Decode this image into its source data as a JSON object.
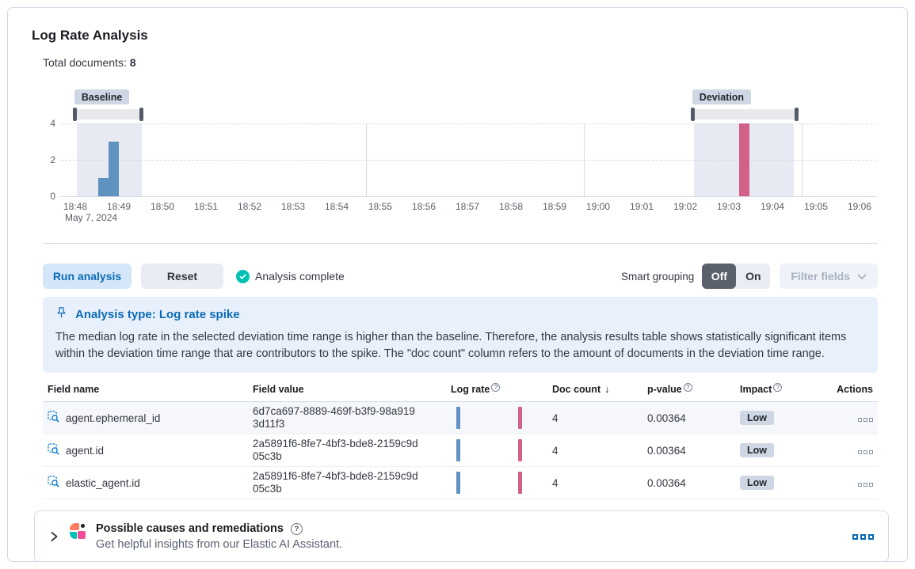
{
  "header": {
    "title": "Log Rate Analysis",
    "total_documents_label": "Total documents:",
    "total_documents_value": "8"
  },
  "chart_data": {
    "type": "bar",
    "title": "Document count histogram with baseline and deviation brushes",
    "x_ticks": [
      "18:48",
      "18:49",
      "18:50",
      "18:51",
      "18:52",
      "18:53",
      "18:54",
      "18:55",
      "18:56",
      "18:57",
      "18:58",
      "18:59",
      "19:00",
      "19:01",
      "19:02",
      "19:03",
      "19:04",
      "19:05",
      "19:06"
    ],
    "x_date_label": "May 7, 2024",
    "y_ticks": [
      0,
      2,
      4
    ],
    "ylim": [
      0,
      4
    ],
    "grid_x_emphasis": [
      "18:55",
      "19:00",
      "19:05"
    ],
    "baseline": {
      "label": "Baseline",
      "from_min": -0.02,
      "to_min": 1.53,
      "region_from": 0.04,
      "region_to": 1.53
    },
    "deviation": {
      "label": "Deviation",
      "from_min": 14.16,
      "to_min": 16.56,
      "region_from": 14.2,
      "region_to": 16.49
    },
    "bars": [
      {
        "time": "18:48",
        "offset_min": 0.64,
        "value": 1,
        "series": "baseline"
      },
      {
        "time": "18:49",
        "offset_min": 0.88,
        "value": 3,
        "series": "baseline"
      },
      {
        "time": "19:03",
        "offset_min": 15.35,
        "value": 4,
        "series": "deviation"
      }
    ],
    "colors": {
      "baseline_bar": "#6092C0",
      "deviation_bar": "#D36086",
      "brush_region": "#E7EAF3",
      "brush_track": "#E8E9ED",
      "brush_handle": "#545B67"
    }
  },
  "toolbar": {
    "run_label": "Run analysis",
    "reset_label": "Reset",
    "status_label": "Analysis complete",
    "smart_grouping_label": "Smart grouping",
    "off_label": "Off",
    "on_label": "On",
    "filter_fields_label": "Filter fields",
    "status_color": "#00BFB3"
  },
  "callout": {
    "title": "Analysis type: Log rate spike",
    "body": "The median log rate in the selected deviation time range is higher than the baseline. Therefore, the analysis results table shows statistically significant items within the deviation time range that are contributors to the spike. The \"doc count\" column refers to the amount of documents in the deviation time range."
  },
  "table": {
    "columns": {
      "field_name": "Field name",
      "field_value": "Field value",
      "log_rate": "Log rate",
      "doc_count": "Doc count",
      "p_value": "p-value",
      "impact": "Impact",
      "actions": "Actions"
    },
    "sorted_column": "doc_count",
    "sort_direction": "descending",
    "rows": [
      {
        "field_name": "agent.ephemeral_id",
        "field_value": "6d7ca697-8889-469f-b3f9-98a9193d11f3",
        "doc_count": "4",
        "p_value": "0.00364",
        "impact": "Low"
      },
      {
        "field_name": "agent.id",
        "field_value": "2a5891f6-8fe7-4bf3-bde8-2159c9d05c3b",
        "doc_count": "4",
        "p_value": "0.00364",
        "impact": "Low"
      },
      {
        "field_name": "elastic_agent.id",
        "field_value": "2a5891f6-8fe7-4bf3-bde8-2159c9d05c3b",
        "doc_count": "4",
        "p_value": "0.00364",
        "impact": "Low"
      }
    ]
  },
  "ai_panel": {
    "title": "Possible causes and remediations",
    "subtitle": "Get helpful insights from our Elastic AI Assistant."
  }
}
